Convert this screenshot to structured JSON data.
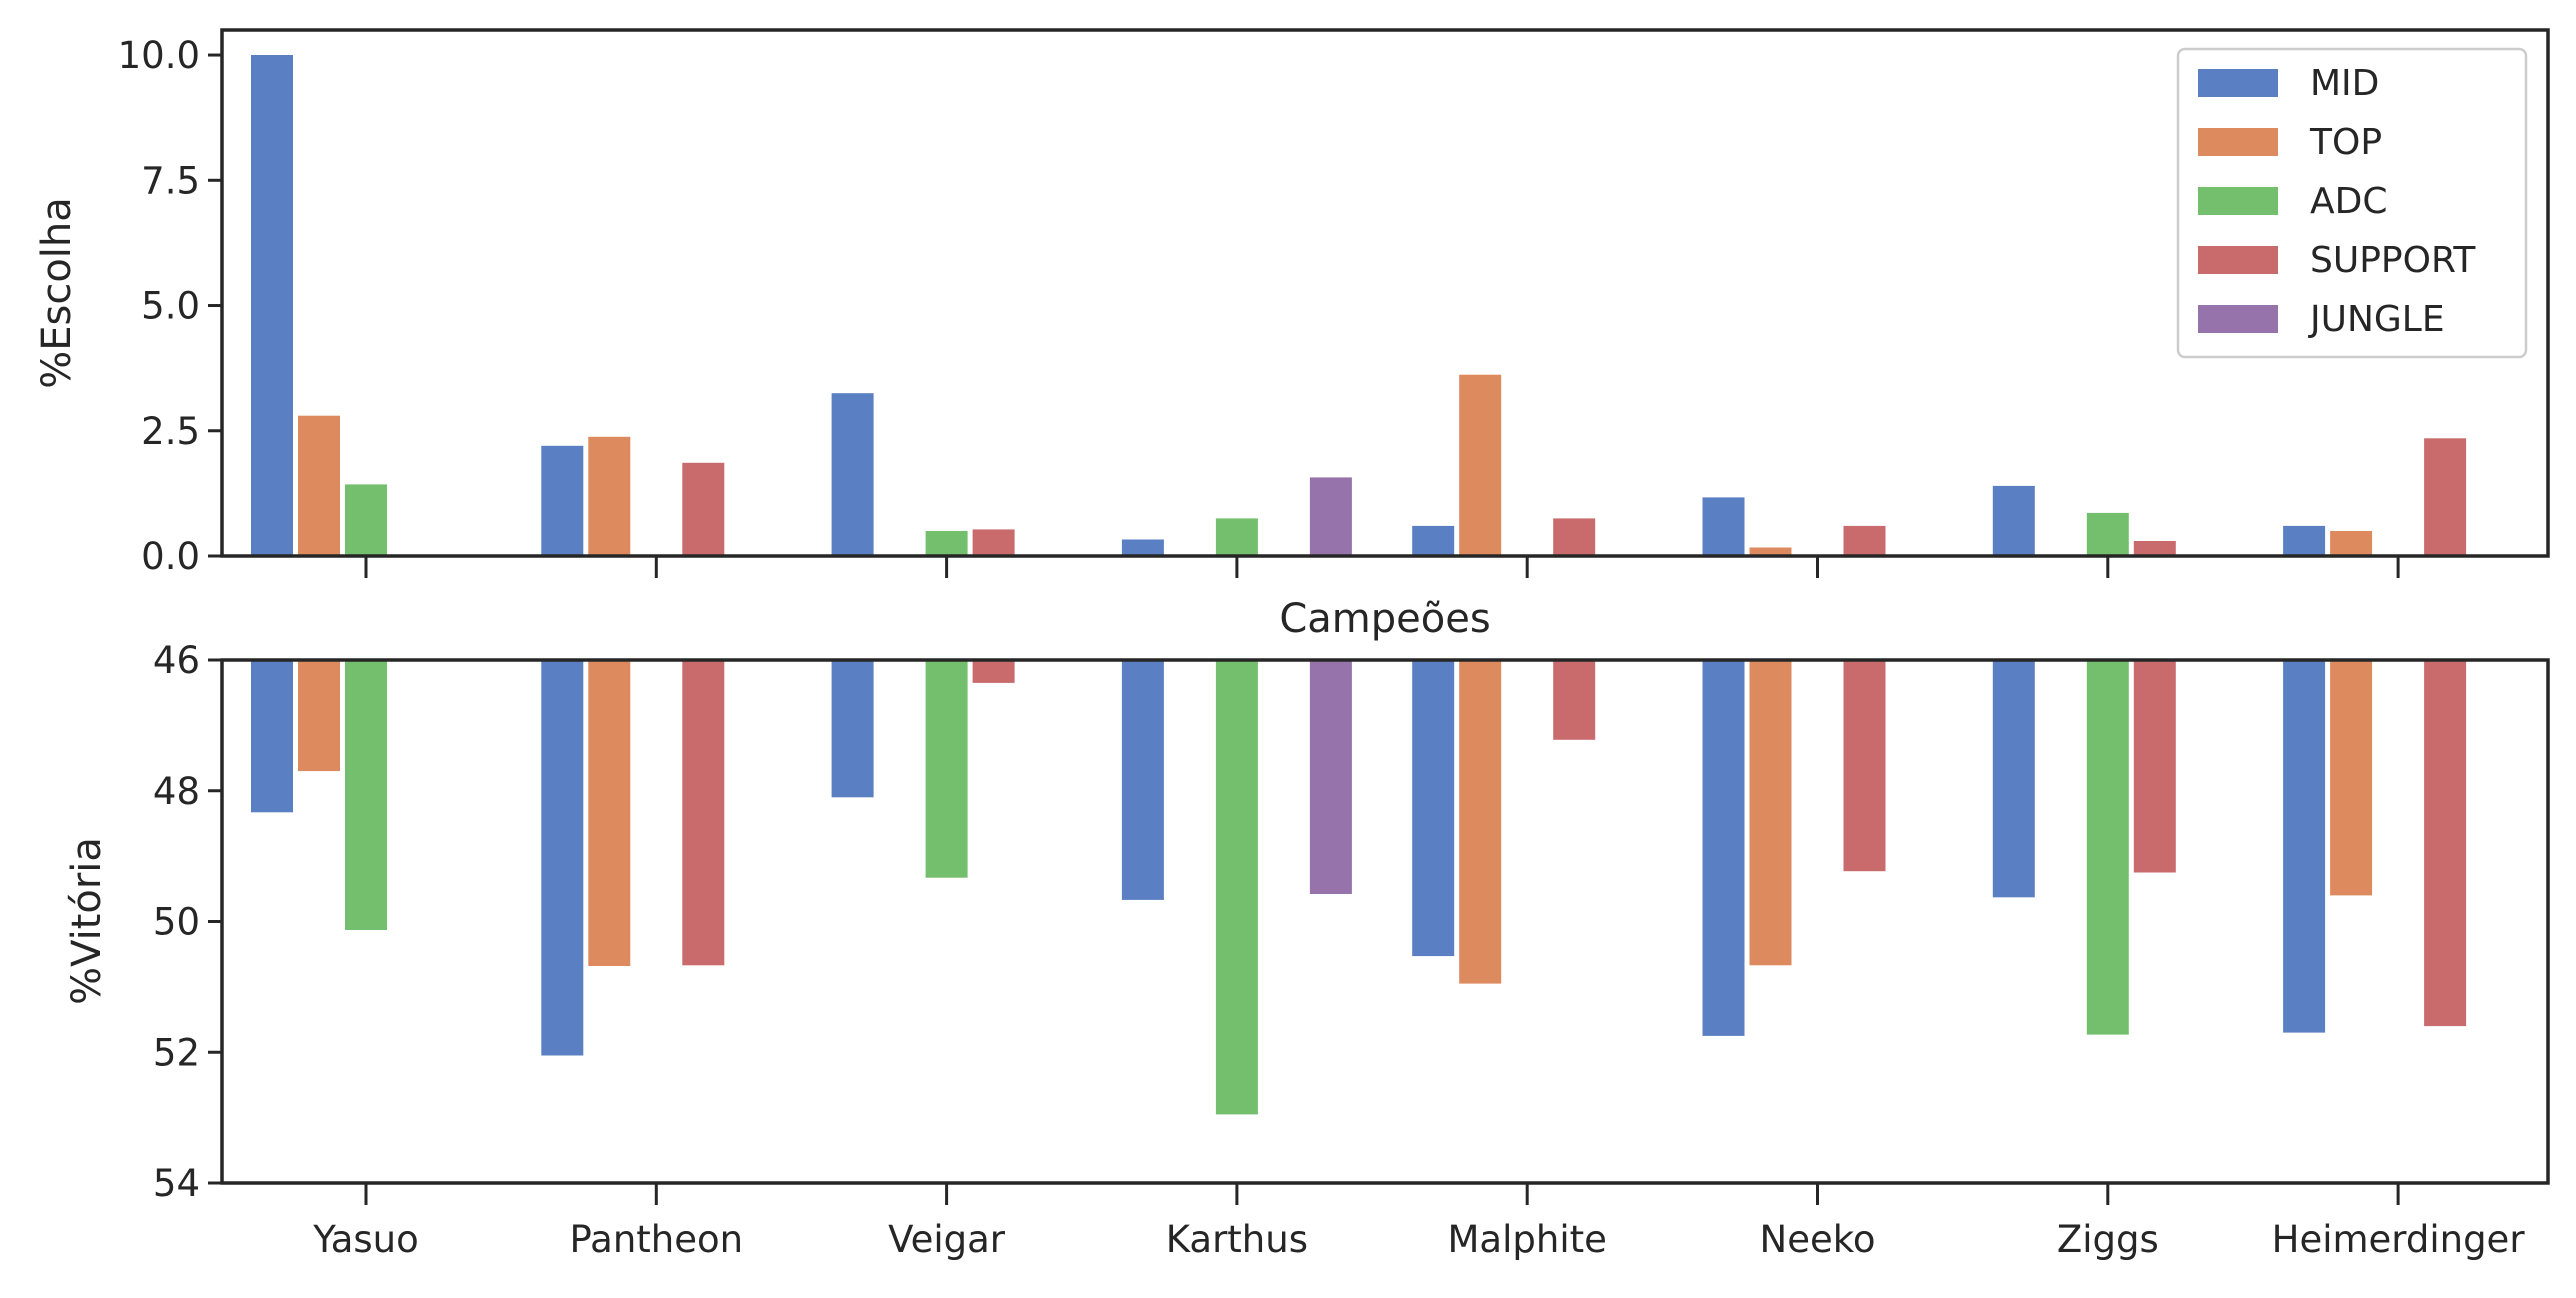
{
  "colors": {
    "MID": "#5a7fc2",
    "TOP": "#dd8a5e",
    "ADC": "#74bf6e",
    "SUPPORT": "#c96b6d",
    "JUNGLE": "#9674ab",
    "axis": "#262626"
  },
  "chart_data": [
    {
      "type": "bar",
      "panel": "top",
      "categories": [
        "Yasuo",
        "Pantheon",
        "Veigar",
        "Karthus",
        "Malphite",
        "Neeko",
        "Ziggs",
        "Heimerdinger"
      ],
      "ylabel": "%Escolha",
      "xlabel": "",
      "ylim": [
        0,
        10.5
      ],
      "yticks": [
        "0.0",
        "2.5",
        "5.0",
        "7.5",
        "10.0"
      ],
      "grid": false,
      "legend": {
        "position": "top-right",
        "entries": [
          "MID",
          "TOP",
          "ADC",
          "SUPPORT",
          "JUNGLE"
        ]
      },
      "series": [
        {
          "name": "MID",
          "values": [
            10.0,
            2.2,
            3.25,
            0.33,
            0.6,
            1.17,
            1.4,
            0.6
          ]
        },
        {
          "name": "TOP",
          "values": [
            2.8,
            2.38,
            null,
            null,
            3.62,
            0.17,
            null,
            0.5
          ]
        },
        {
          "name": "ADC",
          "values": [
            1.43,
            null,
            0.5,
            0.75,
            null,
            null,
            0.86,
            null
          ]
        },
        {
          "name": "SUPPORT",
          "values": [
            null,
            1.86,
            0.53,
            null,
            0.75,
            0.6,
            0.3,
            2.35
          ]
        },
        {
          "name": "JUNGLE",
          "values": [
            null,
            null,
            null,
            1.57,
            null,
            null,
            null,
            null
          ]
        }
      ]
    },
    {
      "type": "bar",
      "panel": "bottom",
      "categories": [
        "Yasuo",
        "Pantheon",
        "Veigar",
        "Karthus",
        "Malphite",
        "Neeko",
        "Ziggs",
        "Heimerdinger"
      ],
      "xlabel": "Campeões",
      "ylabel": "%Vitória",
      "ylim": [
        46,
        54
      ],
      "y_inverted": true,
      "yticks": [
        "46",
        "48",
        "50",
        "52",
        "54"
      ],
      "grid": false,
      "series": [
        {
          "name": "MID",
          "values": [
            48.33,
            52.05,
            48.1,
            49.67,
            50.53,
            51.75,
            49.63,
            51.7
          ]
        },
        {
          "name": "TOP",
          "values": [
            47.7,
            50.68,
            null,
            null,
            50.95,
            50.67,
            null,
            49.6
          ]
        },
        {
          "name": "ADC",
          "values": [
            50.13,
            null,
            49.33,
            52.95,
            null,
            null,
            51.73,
            null
          ]
        },
        {
          "name": "SUPPORT",
          "values": [
            null,
            50.67,
            46.35,
            null,
            47.22,
            49.23,
            49.25,
            51.6
          ]
        },
        {
          "name": "JUNGLE",
          "values": [
            null,
            null,
            null,
            49.58,
            null,
            null,
            null,
            null
          ]
        }
      ]
    }
  ]
}
